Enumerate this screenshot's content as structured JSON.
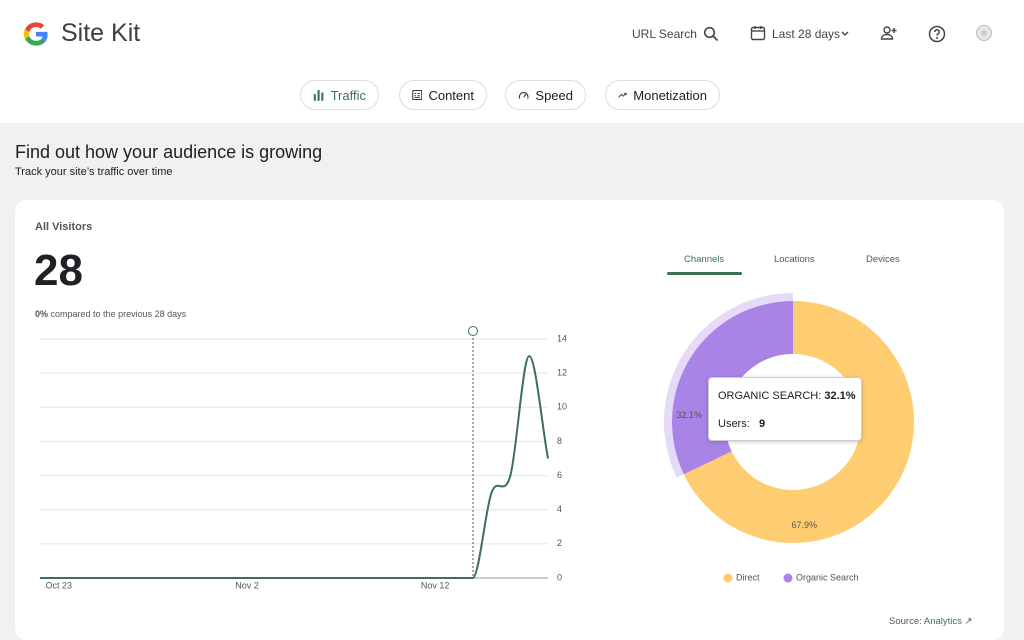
{
  "header": {
    "brand": "Site Kit",
    "url_search": "URL Search",
    "date_range": "Last 28 days"
  },
  "nav": [
    "Traffic",
    "Content",
    "Speed",
    "Monetization"
  ],
  "section": {
    "title": "Find out how your audience is growing",
    "subtitle": "Track your site’s traffic over time"
  },
  "card": {
    "label": "All Visitors",
    "total": 28,
    "change": "0%",
    "change_text": "compared to the previous 28 days",
    "tabs": [
      "Channels",
      "Locations",
      "Devices"
    ],
    "source_label": "Source:",
    "source_link": "Analytics"
  },
  "chart_data": [
    {
      "type": "line",
      "categories": [
        null,
        "Oct 23",
        null,
        null,
        null,
        null,
        null,
        null,
        null,
        null,
        null,
        "Nov 2",
        null,
        null,
        null,
        null,
        null,
        null,
        null,
        null,
        null,
        "Nov 12",
        null,
        null,
        null,
        null,
        null,
        null
      ],
      "values": [
        0,
        0,
        0,
        0,
        0,
        0,
        0,
        0,
        0,
        0,
        0,
        0,
        0,
        0,
        0,
        0,
        0,
        0,
        0,
        0,
        0,
        0,
        0,
        0,
        5,
        6,
        13,
        7
      ],
      "color": "#3c7251",
      "ylim": [
        0,
        14
      ],
      "yticks": [
        0,
        2,
        4,
        6,
        8,
        10,
        12,
        14
      ],
      "grid": true
    },
    {
      "type": "pie",
      "categories": [
        "Direct",
        "Organic Search"
      ],
      "values": [
        67.9,
        32.1
      ],
      "value_labels": [
        "67.9%",
        "32.1%"
      ],
      "colors": [
        "#fecd72",
        "#a983e6"
      ],
      "donut": true,
      "tooltip": {
        "title": "ORGANIC SEARCH:",
        "metric": "Users:",
        "count": 9
      }
    }
  ]
}
